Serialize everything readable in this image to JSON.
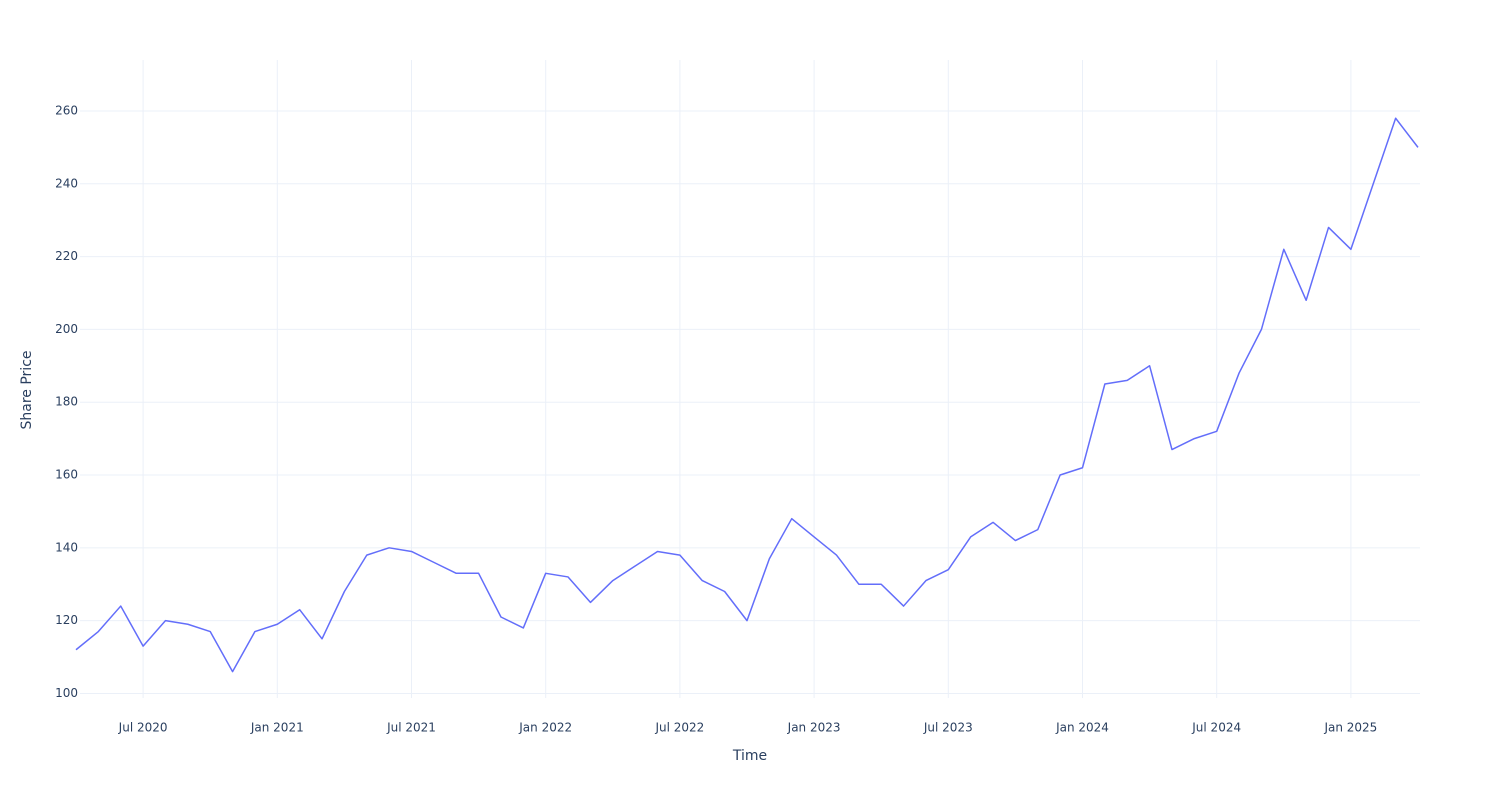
{
  "chart_data": {
    "type": "line",
    "x_title": "Time",
    "y_title": "Share Price",
    "x": [
      "2020-04",
      "2020-05",
      "2020-06",
      "2020-07",
      "2020-08",
      "2020-09",
      "2020-10",
      "2020-11",
      "2020-12",
      "2021-01",
      "2021-02",
      "2021-03",
      "2021-04",
      "2021-05",
      "2021-06",
      "2021-07",
      "2021-08",
      "2021-09",
      "2021-10",
      "2021-11",
      "2021-12",
      "2022-01",
      "2022-02",
      "2022-03",
      "2022-04",
      "2022-05",
      "2022-06",
      "2022-07",
      "2022-08",
      "2022-09",
      "2022-10",
      "2022-11",
      "2022-12",
      "2023-01",
      "2023-02",
      "2023-03",
      "2023-04",
      "2023-05",
      "2023-06",
      "2023-07",
      "2023-08",
      "2023-09",
      "2023-10",
      "2023-11",
      "2023-12",
      "2024-01",
      "2024-02",
      "2024-03",
      "2024-04",
      "2024-05",
      "2024-06",
      "2024-07",
      "2024-08",
      "2024-09",
      "2024-10",
      "2024-11",
      "2024-12",
      "2025-01",
      "2025-02",
      "2025-03",
      "2025-04"
    ],
    "series": [
      {
        "name": "Share Price",
        "color": "#636efa",
        "values": [
          112,
          117,
          124,
          113,
          120,
          119,
          117,
          106,
          117,
          119,
          123,
          115,
          128,
          138,
          140,
          139,
          136,
          133,
          133,
          121,
          118,
          133,
          132,
          125,
          131,
          135,
          139,
          138,
          131,
          128,
          120,
          137,
          148,
          143,
          138,
          130,
          130,
          124,
          131,
          134,
          143,
          147,
          142,
          145,
          160,
          162,
          185,
          186,
          190,
          167,
          170,
          172,
          188,
          200,
          222,
          208,
          228,
          222,
          240,
          258,
          250
        ]
      }
    ],
    "xlim": [
      "2020-04",
      "2025-04"
    ],
    "xticks": [
      {
        "value": "2020-07",
        "label": "Jul 2020"
      },
      {
        "value": "2021-01",
        "label": "Jan 2021"
      },
      {
        "value": "2021-07",
        "label": "Jul 2021"
      },
      {
        "value": "2022-01",
        "label": "Jan 2022"
      },
      {
        "value": "2022-07",
        "label": "Jul 2022"
      },
      {
        "value": "2023-01",
        "label": "Jan 2023"
      },
      {
        "value": "2023-07",
        "label": "Jul 2023"
      },
      {
        "value": "2024-01",
        "label": "Jan 2024"
      },
      {
        "value": "2024-07",
        "label": "Jul 2024"
      },
      {
        "value": "2025-01",
        "label": "Jan 2025"
      }
    ],
    "ylim": [
      96,
      274
    ],
    "yticks": [
      100,
      120,
      140,
      160,
      180,
      200,
      220,
      240,
      260
    ],
    "grid": true
  }
}
